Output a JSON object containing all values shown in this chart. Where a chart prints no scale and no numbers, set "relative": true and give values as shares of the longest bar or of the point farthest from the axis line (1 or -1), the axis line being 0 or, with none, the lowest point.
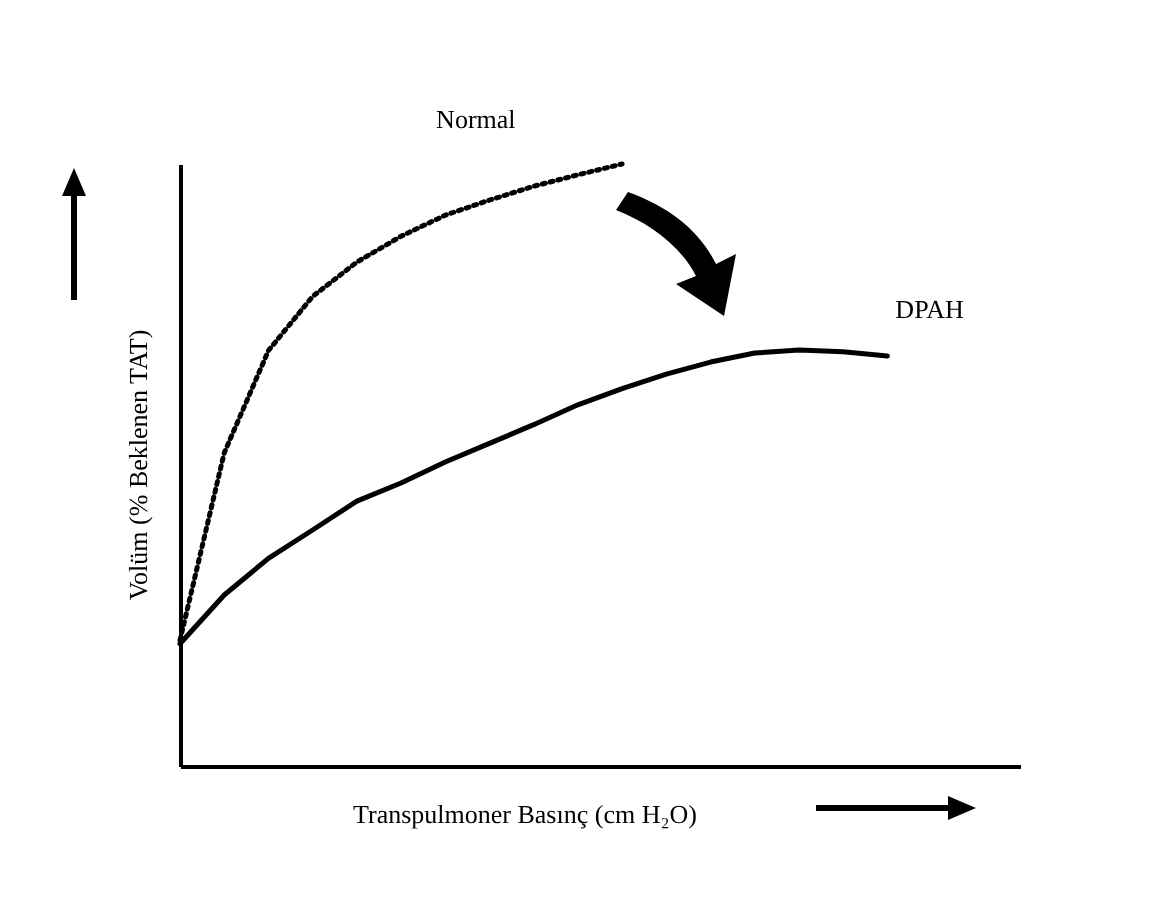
{
  "chart_data": {
    "type": "line",
    "relative": true,
    "xlabel": "Transpulmoner Basınç (cm H₂O)",
    "ylabel": "Volüm (% Beklenen TAT)",
    "categories": [
      null,
      null,
      null,
      null,
      null,
      null,
      null,
      null,
      null,
      null,
      null,
      null,
      null,
      null,
      null,
      null,
      null,
      null,
      null,
      null
    ],
    "series": [
      {
        "name": "Normal",
        "color": "#000000",
        "line_style": "dotted",
        "values": [
          0.209,
          0.52,
          0.69,
          0.78,
          0.837,
          0.88,
          0.915,
          0.94,
          0.963,
          0.982,
          1,
          null,
          null,
          null,
          null,
          null,
          null,
          null,
          null,
          null
        ]
      },
      {
        "name": "DPAH",
        "color": "#000000",
        "line_style": "solid",
        "values": [
          0.203,
          0.284,
          0.345,
          0.392,
          0.44,
          0.47,
          0.505,
          0.536,
          0.567,
          0.6,
          0.627,
          0.651,
          0.671,
          0.686,
          0.691,
          0.688,
          0.681,
          null,
          null,
          null
        ]
      }
    ]
  }
}
